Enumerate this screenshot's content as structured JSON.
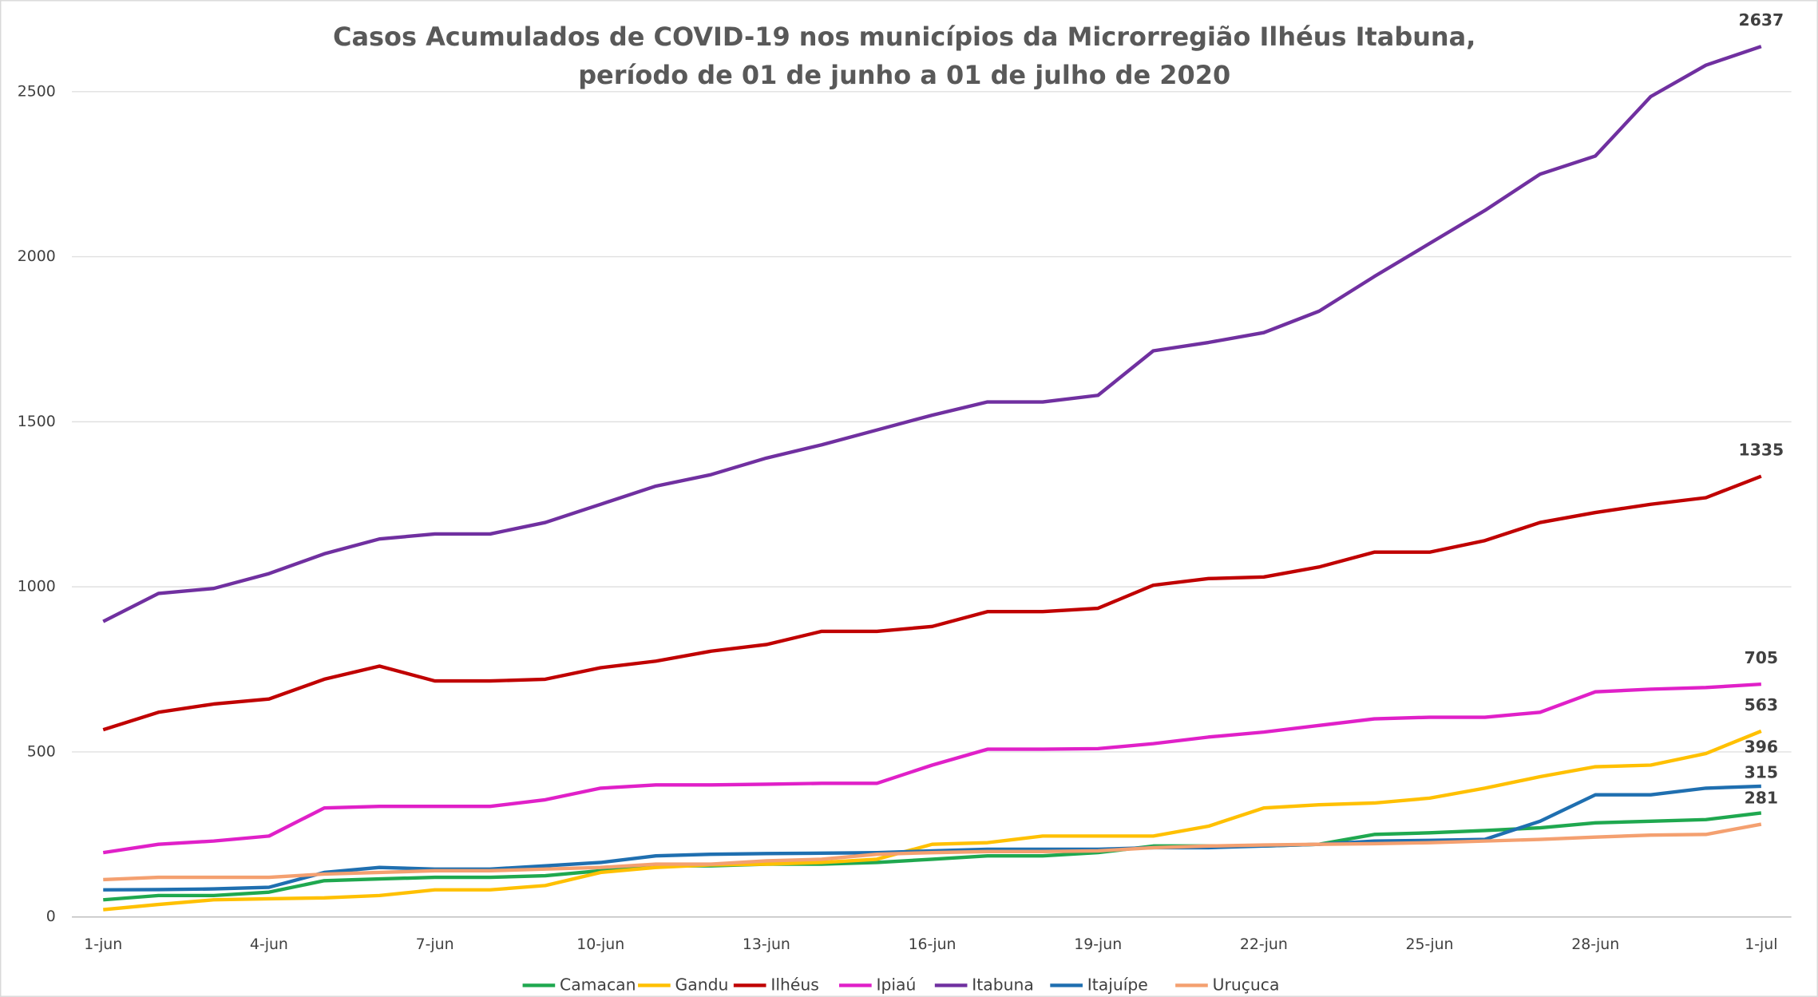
{
  "chart_data": {
    "type": "line",
    "title": [
      "Casos Acumulados de COVID-19 nos municípios da Microrregião Ilhéus Itabuna,",
      "período de 01 de junho a  01 de julho de 2020"
    ],
    "categories": [
      "1-jun",
      null,
      null,
      "4-jun",
      null,
      null,
      "7-jun",
      null,
      null,
      "10-jun",
      null,
      null,
      "13-jun",
      null,
      null,
      "16-jun",
      null,
      null,
      "19-jun",
      null,
      null,
      "22-jun",
      null,
      null,
      "25-jun",
      null,
      null,
      "28-jun",
      null,
      null,
      "1-jul"
    ],
    "series": [
      {
        "name": "Camacan",
        "color": "#1fa84f",
        "values": [
          52,
          65,
          65,
          75,
          110,
          115,
          120,
          120,
          125,
          140,
          155,
          155,
          160,
          160,
          165,
          175,
          185,
          185,
          195,
          215,
          215,
          215,
          220,
          250,
          255,
          262,
          270,
          285,
          290,
          295,
          315
        ]
      },
      {
        "name": "Gandu",
        "color": "#ffc000",
        "values": [
          22,
          38,
          52,
          55,
          58,
          65,
          82,
          82,
          95,
          135,
          150,
          158,
          160,
          165,
          175,
          220,
          225,
          245,
          245,
          245,
          275,
          330,
          340,
          345,
          360,
          390,
          425,
          455,
          460,
          495,
          563
        ]
      },
      {
        "name": "Ilhéus",
        "color": "#c00000",
        "values": [
          567,
          620,
          645,
          660,
          720,
          760,
          715,
          715,
          720,
          755,
          775,
          805,
          825,
          865,
          865,
          880,
          925,
          925,
          935,
          1005,
          1025,
          1030,
          1060,
          1105,
          1105,
          1140,
          1195,
          1225,
          1250,
          1270,
          1335
        ]
      },
      {
        "name": "Ipiaú",
        "color": "#e020c8",
        "values": [
          195,
          220,
          230,
          245,
          330,
          335,
          335,
          335,
          355,
          390,
          400,
          400,
          402,
          405,
          405,
          460,
          508,
          508,
          510,
          525,
          545,
          560,
          580,
          600,
          605,
          605,
          620,
          682,
          690,
          695,
          705
        ]
      },
      {
        "name": "Itabuna",
        "color": "#7030a0",
        "values": [
          895,
          980,
          995,
          1040,
          1100,
          1145,
          1160,
          1160,
          1195,
          1250,
          1305,
          1340,
          1390,
          1430,
          1475,
          1520,
          1560,
          1560,
          1580,
          1715,
          1740,
          1770,
          1835,
          1940,
          2040,
          2140,
          2250,
          2305,
          2485,
          2580,
          2637
        ]
      },
      {
        "name": "Itajuípe",
        "color": "#1f6fb0",
        "values": [
          82,
          83,
          85,
          90,
          135,
          150,
          145,
          145,
          155,
          165,
          185,
          190,
          192,
          193,
          195,
          200,
          205,
          205,
          205,
          210,
          210,
          215,
          220,
          230,
          232,
          235,
          290,
          370,
          370,
          390,
          396
        ]
      },
      {
        "name": "Uruçuca",
        "color": "#f4a070",
        "values": [
          113,
          120,
          120,
          120,
          130,
          135,
          140,
          140,
          145,
          150,
          160,
          160,
          170,
          175,
          190,
          195,
          198,
          198,
          200,
          210,
          215,
          218,
          220,
          222,
          225,
          230,
          235,
          242,
          248,
          250,
          281
        ]
      }
    ],
    "ylim": [
      0,
      2700
    ],
    "yticks": [
      0,
      500,
      1000,
      1500,
      2000,
      2500
    ],
    "grid": true,
    "legend": "bottom"
  }
}
